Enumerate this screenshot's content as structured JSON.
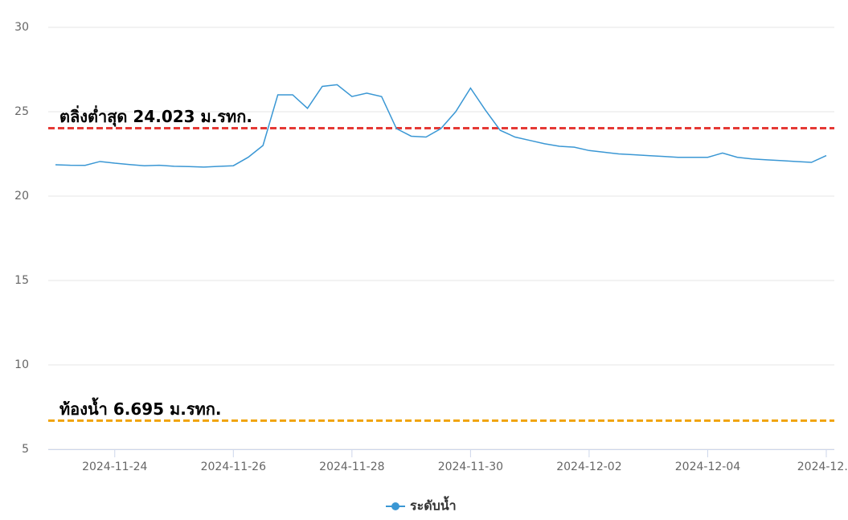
{
  "chart_data": {
    "type": "line",
    "categories": [
      null,
      null,
      null,
      null,
      "2024-11-24",
      null,
      null,
      null,
      null,
      null,
      null,
      null,
      "2024-11-26",
      null,
      null,
      null,
      null,
      null,
      null,
      null,
      "2024-11-28",
      null,
      null,
      null,
      null,
      null,
      null,
      null,
      "2024-11-30",
      null,
      null,
      null,
      null,
      null,
      null,
      null,
      "2024-12-02",
      null,
      null,
      null,
      null,
      null,
      null,
      null,
      "2024-12-04",
      null,
      null,
      null,
      null,
      null,
      null,
      null,
      "2024-12…"
    ],
    "series": [
      {
        "name": "ระดับน้ำ",
        "color": "#3a97d4",
        "values": [
          21.86,
          21.83,
          21.82,
          22.05,
          21.95,
          21.87,
          21.8,
          21.83,
          21.77,
          21.75,
          21.72,
          21.76,
          21.8,
          22.3,
          23.0,
          26.0,
          26.0,
          25.2,
          26.5,
          26.6,
          25.9,
          26.1,
          25.9,
          24.0,
          23.55,
          23.5,
          24.0,
          25.0,
          26.4,
          25.1,
          23.9,
          23.5,
          23.3,
          23.1,
          22.95,
          22.9,
          22.7,
          22.6,
          22.5,
          22.45,
          22.4,
          22.35,
          22.3,
          22.3,
          22.3,
          22.55,
          22.3,
          22.2,
          22.15,
          22.1,
          22.05,
          22.0,
          22.4
        ]
      }
    ],
    "reference_lines": [
      {
        "value": 24.023,
        "label": "ตลิ่งต่ำสุด 24.023 ม.รทก.",
        "color": "#e53935"
      },
      {
        "value": 6.695,
        "label": "ท้องน้ำ 6.695 ม.รทก.",
        "color": "#f0a30a"
      }
    ],
    "ylim": [
      5,
      30
    ],
    "yticks": [
      5,
      10,
      15,
      20,
      25,
      30
    ],
    "grid": true,
    "legend": "bottom"
  }
}
